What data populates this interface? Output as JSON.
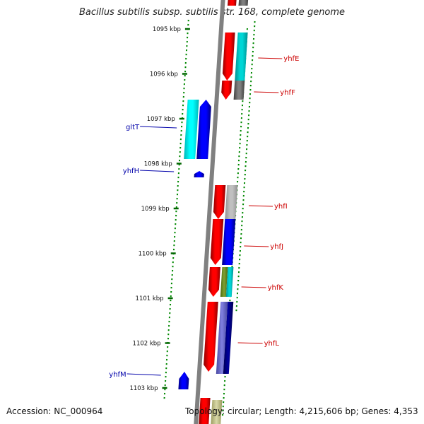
{
  "title": "Bacillus subtilis subsp. subtilis str. 168, complete genome",
  "footer": {
    "accession": "Accession: NC_000964",
    "topology": "Topology: circular; Length: 4,215,606 bp; Genes: 4,353"
  },
  "ticks": [
    "1095 kbp",
    "1096 kbp",
    "1097 kbp",
    "1098 kbp",
    "1099 kbp",
    "1100 kbp",
    "1101 kbp",
    "1102 kbp",
    "1103 kbp"
  ],
  "genes": {
    "forward": [
      "yhfE",
      "yhfF",
      "yhfI",
      "yhfJ",
      "yhfK",
      "yhfL"
    ],
    "reverse": [
      "gltT",
      "yhfH",
      "yhfM"
    ]
  },
  "colors": {
    "forward_label": "#cc0000",
    "reverse_label": "#0000aa",
    "tick": "#006600",
    "dots": "#008800",
    "backbone": "#808080",
    "red_feature": "#ee0000",
    "blue_feature": "#0000ee",
    "cyan_feature": "#00cccc",
    "grey_feature": "#707070",
    "light_grey_feature": "#b0b0b0",
    "olive_feature": "#6b8e23",
    "navy_feature": "#00008b",
    "slate_feature": "#6060c0",
    "khaki_feature": "#c8c890"
  }
}
